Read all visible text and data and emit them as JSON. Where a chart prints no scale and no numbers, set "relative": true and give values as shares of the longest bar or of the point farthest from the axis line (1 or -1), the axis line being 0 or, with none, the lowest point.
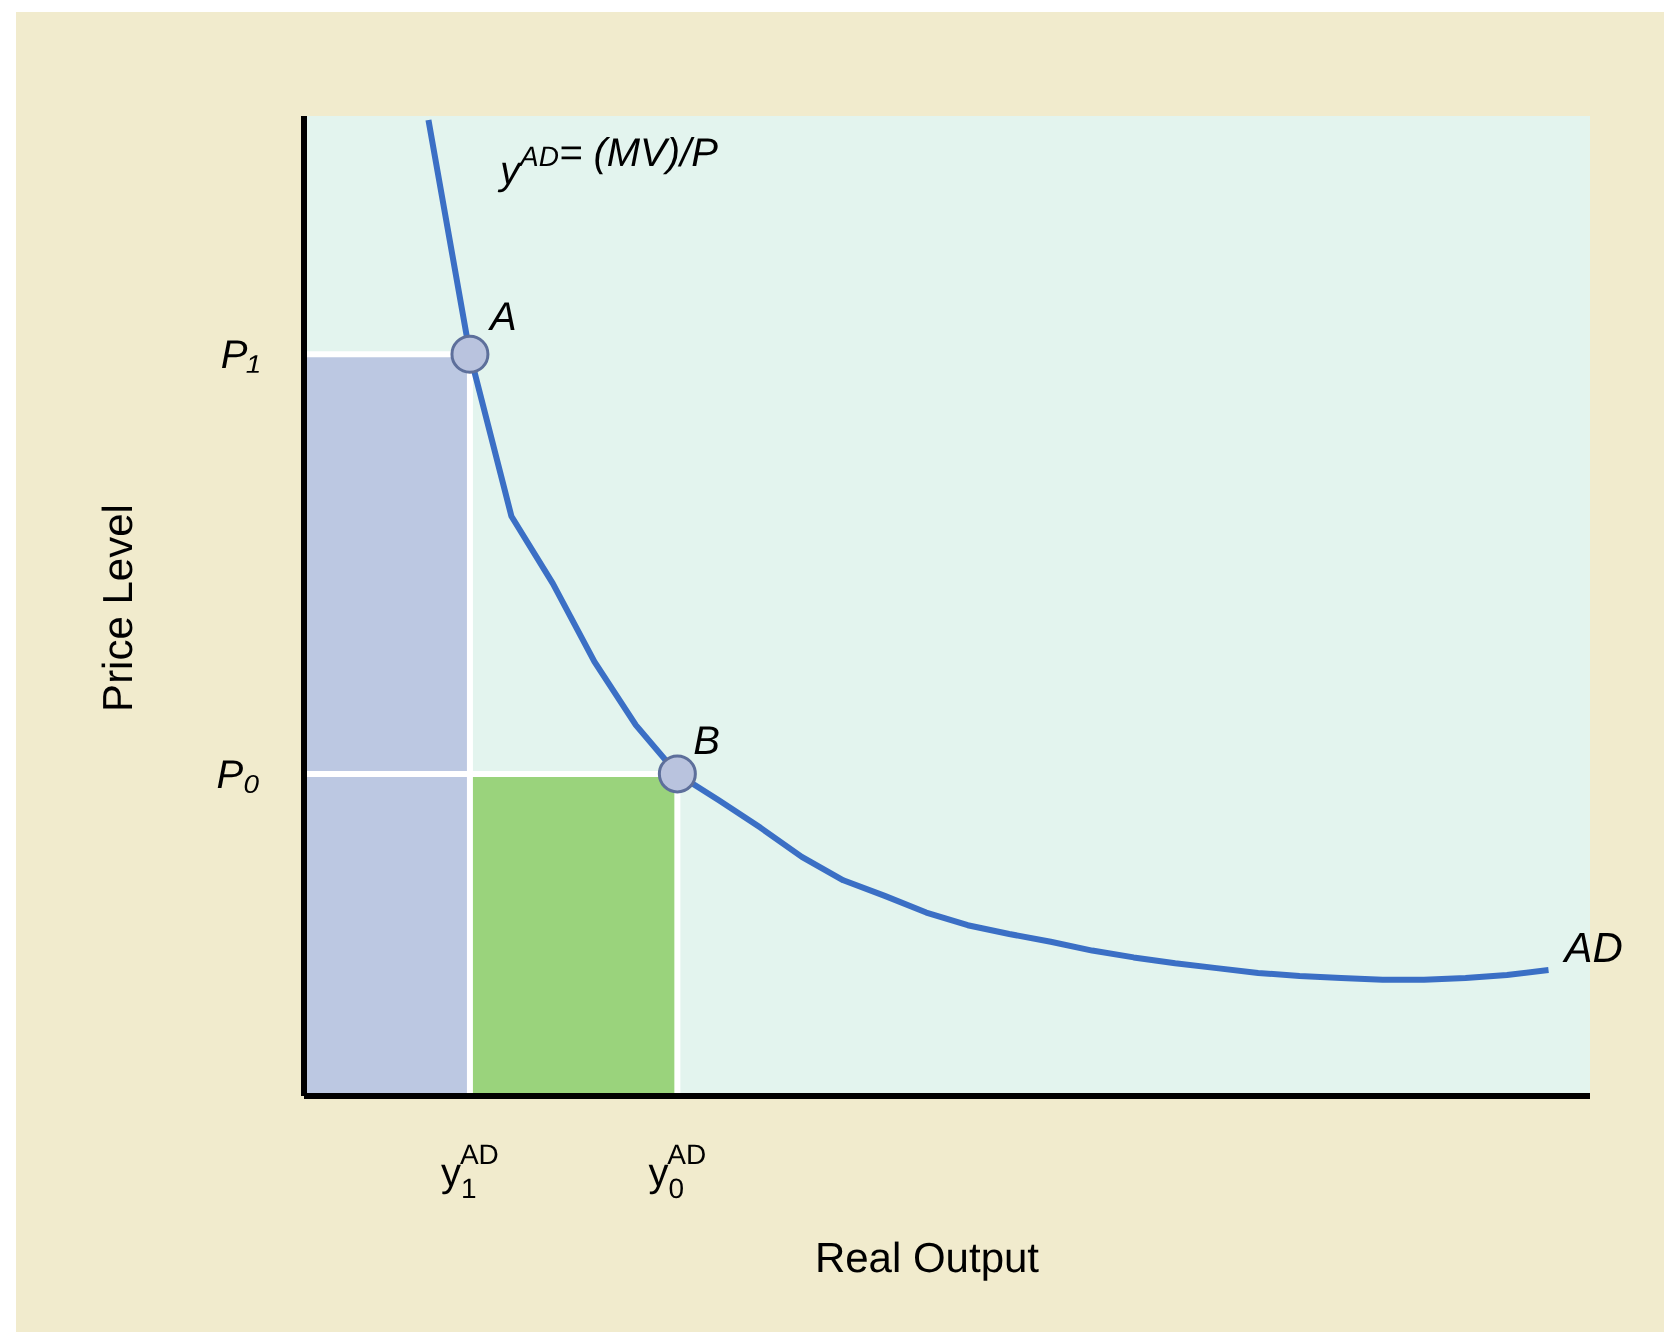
{
  "chart_data": {
    "type": "line",
    "relative": true,
    "xlabel": "Real Output",
    "ylabel": "Price Level",
    "categories": [
      null,
      null,
      null,
      null,
      null,
      null,
      null,
      null,
      null,
      null,
      null,
      null,
      null,
      null,
      null,
      null,
      null,
      null,
      null,
      null,
      null,
      null,
      null,
      null,
      null,
      null,
      null,
      null,
      null,
      null,
      null,
      null
    ],
    "series": [
      {
        "name": "AD",
        "color": "#3b6fc5",
        "values": [
          null,
          null,
          null,
          1.0,
          0.76,
          0.594,
          0.525,
          0.445,
          0.38,
          0.33,
          0.303,
          0.275,
          0.245,
          0.221,
          0.205,
          0.188,
          0.175,
          0.166,
          0.158,
          0.149,
          0.142,
          0.136,
          0.131,
          0.126,
          0.123,
          0.121,
          0.119,
          0.119,
          0.121,
          0.124,
          0.129,
          null
        ]
      }
    ],
    "annotations": [
      "y$^{AD}$= (MV)/P",
      "A",
      "B",
      "P₁",
      "P₀",
      "y$_{1}$$^{AD}$",
      "y$_{0}$$^{AD}$"
    ]
  }
}
